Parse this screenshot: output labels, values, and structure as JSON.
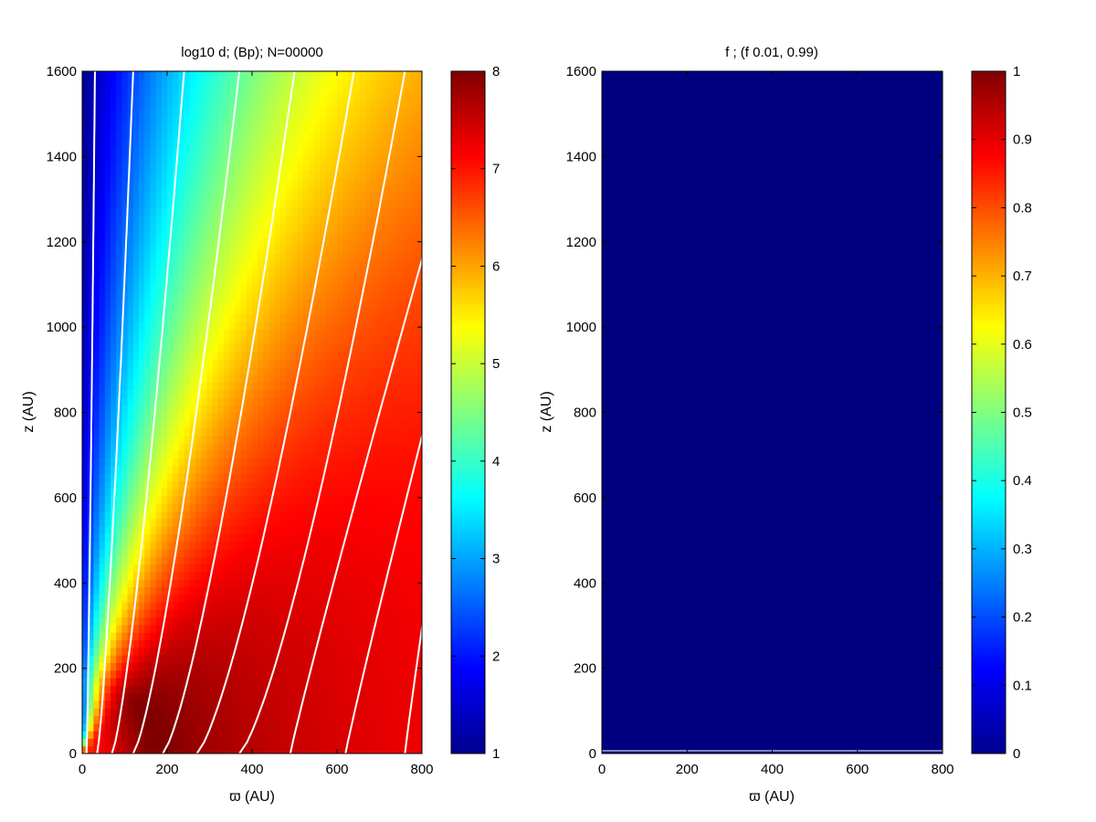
{
  "chart_data": [
    {
      "type": "heatmap",
      "title": "log10 d; (Bp);  N=00000",
      "xlabel": "ϖ (AU)",
      "ylabel": "z (AU)",
      "xlim": [
        0,
        800
      ],
      "ylim": [
        0,
        1600
      ],
      "xticks": [
        0,
        200,
        400,
        600,
        800
      ],
      "yticks": [
        0,
        200,
        400,
        600,
        800,
        1000,
        1200,
        1400,
        1600
      ],
      "colormap": "jet",
      "colorbar": {
        "min": 1,
        "max": 8,
        "ticks": [
          1,
          2,
          3,
          4,
          5,
          6,
          7,
          8
        ]
      },
      "description_field": "log10 density peaking near (200, 50) at ~8, falling to ~1 along z-axis at small radius",
      "field_lines": {
        "color": "#ffffff",
        "footpoints_x": [
          10,
          35,
          70,
          120,
          190,
          270,
          370,
          490,
          620,
          760
        ],
        "top_x": [
          30,
          120,
          240,
          370,
          500,
          640,
          760,
          800,
          800,
          800
        ]
      },
      "grid": false
    },
    {
      "type": "heatmap",
      "title": "f ; (f 0.01, 0.99)",
      "xlabel": "ϖ (AU)",
      "ylabel": "z (AU)",
      "xlim": [
        0,
        800
      ],
      "ylim": [
        0,
        1600
      ],
      "xticks": [
        0,
        200,
        400,
        600,
        800
      ],
      "yticks": [
        0,
        200,
        400,
        600,
        800,
        1000,
        1200,
        1400,
        1600
      ],
      "colormap": "jet",
      "colorbar": {
        "min": 0,
        "max": 1,
        "ticks": [
          0,
          0.1,
          0.2,
          0.3,
          0.4,
          0.5,
          0.6,
          0.7,
          0.8,
          0.9,
          1
        ]
      },
      "field_value": 0,
      "grid": false
    }
  ]
}
